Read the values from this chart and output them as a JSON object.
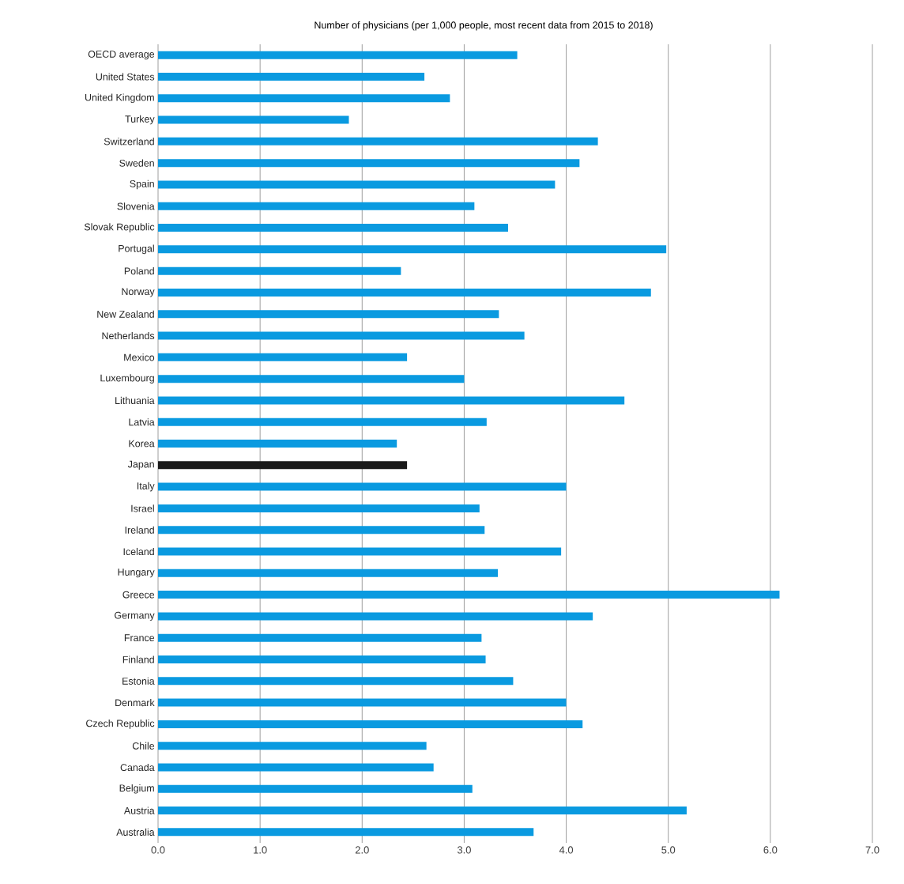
{
  "chart_data": {
    "type": "bar",
    "orientation": "horizontal",
    "title": "Number of physicians (per 1,000 people, most recent data from 2015 to 2018)",
    "categories": [
      "OECD average",
      "United States",
      "United Kingdom",
      "Turkey",
      "Switzerland",
      "Sweden",
      "Spain",
      "Slovenia",
      "Slovak Republic",
      "Portugal",
      "Poland",
      "Norway",
      "New Zealand",
      "Netherlands",
      "Mexico",
      "Luxembourg",
      "Lithuania",
      "Latvia",
      "Korea",
      "Japan",
      "Italy",
      "Israel",
      "Ireland",
      "Iceland",
      "Hungary",
      "Greece",
      "Germany",
      "France",
      "Finland",
      "Estonia",
      "Denmark",
      "Czech Republic",
      "Chile",
      "Canada",
      "Belgium",
      "Austria",
      "Australia"
    ],
    "values": [
      3.52,
      2.61,
      2.86,
      1.87,
      4.31,
      4.13,
      3.89,
      3.1,
      3.43,
      4.98,
      2.38,
      4.83,
      3.34,
      3.59,
      2.44,
      3.0,
      4.57,
      3.22,
      2.34,
      2.44,
      4.0,
      3.15,
      3.2,
      3.95,
      3.33,
      6.09,
      4.26,
      3.17,
      3.21,
      3.48,
      4.0,
      4.16,
      2.63,
      2.7,
      3.08,
      5.18,
      3.68
    ],
    "colors": [
      "#0a9ae0",
      "#0a9ae0",
      "#0a9ae0",
      "#0a9ae0",
      "#0a9ae0",
      "#0a9ae0",
      "#0a9ae0",
      "#0a9ae0",
      "#0a9ae0",
      "#0a9ae0",
      "#0a9ae0",
      "#0a9ae0",
      "#0a9ae0",
      "#0a9ae0",
      "#0a9ae0",
      "#0a9ae0",
      "#0a9ae0",
      "#0a9ae0",
      "#0a9ae0",
      "#1a1a1a",
      "#0a9ae0",
      "#0a9ae0",
      "#0a9ae0",
      "#0a9ae0",
      "#0a9ae0",
      "#0a9ae0",
      "#0a9ae0",
      "#0a9ae0",
      "#0a9ae0",
      "#0a9ae0",
      "#0a9ae0",
      "#0a9ae0",
      "#0a9ae0",
      "#0a9ae0",
      "#0a9ae0",
      "#0a9ae0",
      "#0a9ae0"
    ],
    "xlim": [
      0,
      7
    ],
    "xticks": [
      {
        "value": 0,
        "label": "0.0"
      },
      {
        "value": 1,
        "label": "1.0"
      },
      {
        "value": 2,
        "label": "2.0"
      },
      {
        "value": 3,
        "label": "3.0"
      },
      {
        "value": 4,
        "label": "4.0"
      },
      {
        "value": 5,
        "label": "5.0"
      },
      {
        "value": 6,
        "label": "6.0"
      },
      {
        "value": 7,
        "label": "7.0"
      }
    ],
    "grid": "x"
  }
}
